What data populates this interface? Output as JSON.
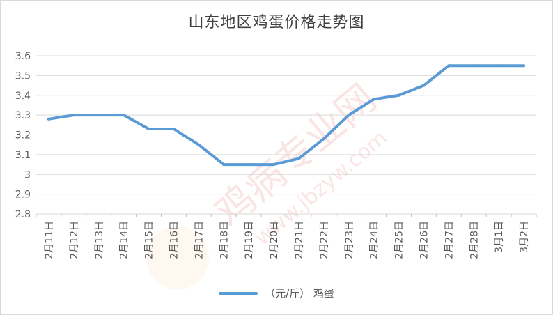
{
  "chart_data": {
    "type": "line",
    "title": "山东地区鸡蛋价格走势图",
    "categories": [
      "2月11日",
      "2月12日",
      "2月13日",
      "2月14日",
      "2月15日",
      "2月16日",
      "2月17日",
      "2月18日",
      "2月19日",
      "2月20日",
      "2月21日",
      "2月22日",
      "2月23日",
      "2月24日",
      "2月25日",
      "2月26日",
      "2月27日",
      "2月28日",
      "3月1日",
      "3月2日"
    ],
    "series": [
      {
        "name": "（元/斤） 鸡蛋",
        "color": "#5b9bd5",
        "values": [
          3.28,
          3.3,
          3.3,
          3.3,
          3.23,
          3.23,
          3.15,
          3.05,
          3.05,
          3.05,
          3.08,
          3.18,
          3.3,
          3.38,
          3.4,
          3.45,
          3.55,
          3.55,
          3.55,
          3.55
        ]
      }
    ],
    "y_ticks": [
      "2.8",
      "2.9",
      "3",
      "3.1",
      "3.2",
      "3.3",
      "3.4",
      "3.5",
      "3.6"
    ],
    "ylim": [
      2.8,
      3.6
    ],
    "grid": true,
    "legend_position": "bottom"
  }
}
